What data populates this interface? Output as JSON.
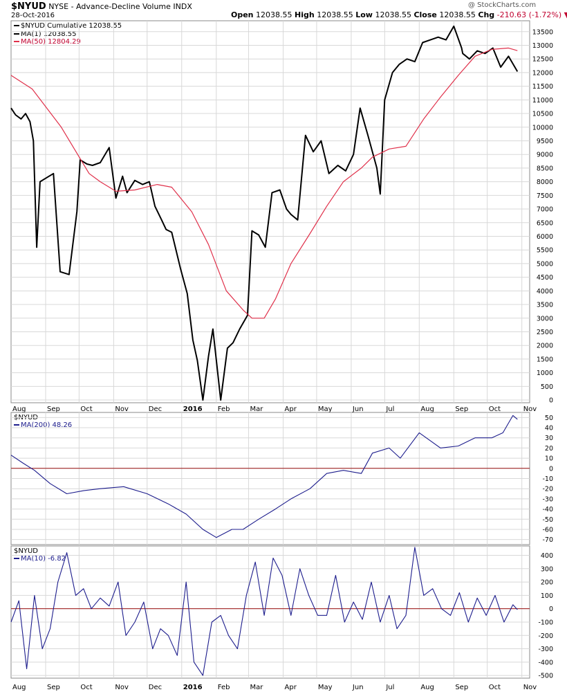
{
  "header": {
    "symbol": "$NYUD",
    "description": "NYSE - Advance-Decline Volume INDX",
    "date": "28-Oct-2016",
    "open_label": "Open",
    "open": "12038.55",
    "high_label": "High",
    "high": "12038.55",
    "low_label": "Low",
    "low": "12038.55",
    "close_label": "Close",
    "close": "12038.55",
    "chg_label": "Chg",
    "chg": "-210.63 (-1.72%)",
    "chg_color": "#c0002e",
    "watermark": "@ StockCharts.com"
  },
  "colors": {
    "price": "#000000",
    "ma50": "#e0304a",
    "osc": "#1c1c8c",
    "zero": "#9a1010",
    "grid": "#d8d8d8"
  },
  "legends": {
    "main": [
      "$NYUD Cumulative 12038.55",
      "MA(1) 12038.55",
      "MA(50) 12804.29"
    ],
    "panel2": [
      "$NYUD",
      "MA(200) 48.26"
    ],
    "panel3": [
      "$NYUD",
      "MA(10) -6.82"
    ]
  },
  "chart_data": [
    {
      "type": "line",
      "series": [
        {
          "name": "MA(1)",
          "x": [
            "2015-08-01",
            "2015-08-05",
            "2015-08-10",
            "2015-08-14",
            "2015-08-18",
            "2015-08-21",
            "2015-08-24",
            "2015-08-27",
            "2015-09-02",
            "2015-09-08",
            "2015-09-14",
            "2015-09-22",
            "2015-09-29",
            "2015-10-02",
            "2015-10-08",
            "2015-10-13",
            "2015-10-20",
            "2015-10-28",
            "2015-11-03",
            "2015-11-09",
            "2015-11-13",
            "2015-11-20",
            "2015-11-27",
            "2015-12-03",
            "2015-12-08",
            "2015-12-14",
            "2015-12-18",
            "2015-12-23",
            "2015-12-31",
            "2016-01-06",
            "2016-01-11",
            "2016-01-15",
            "2016-01-20",
            "2016-01-25",
            "2016-01-29",
            "2016-02-05",
            "2016-02-11",
            "2016-02-16",
            "2016-02-22",
            "2016-02-29",
            "2016-03-04",
            "2016-03-10",
            "2016-03-16",
            "2016-03-22",
            "2016-03-29",
            "2016-04-04",
            "2016-04-08",
            "2016-04-14",
            "2016-04-21",
            "2016-04-28",
            "2016-05-05",
            "2016-05-12",
            "2016-05-20",
            "2016-05-27",
            "2016-06-03",
            "2016-06-09",
            "2016-06-16",
            "2016-06-24",
            "2016-06-27",
            "2016-07-01",
            "2016-07-08",
            "2016-07-14",
            "2016-07-21",
            "2016-07-28",
            "2016-08-04",
            "2016-08-11",
            "2016-08-18",
            "2016-08-25",
            "2016-09-01",
            "2016-09-08",
            "2016-09-09",
            "2016-09-15",
            "2016-09-22",
            "2016-09-29",
            "2016-10-06",
            "2016-10-13",
            "2016-10-20",
            "2016-10-28"
          ],
          "y": [
            10700,
            10450,
            10300,
            10500,
            10200,
            9500,
            5600,
            8000,
            8150,
            8300,
            4700,
            4600,
            6900,
            8800,
            8650,
            8600,
            8700,
            9250,
            7400,
            8200,
            7600,
            8050,
            7900,
            8000,
            7100,
            6600,
            6250,
            6150,
            4800,
            3900,
            2200,
            1450,
            0,
            1600,
            2600,
            0,
            1900,
            2100,
            2600,
            3100,
            6200,
            6050,
            5600,
            7600,
            7700,
            7000,
            6800,
            6600,
            9700,
            9100,
            9500,
            8300,
            8600,
            8400,
            9000,
            10700,
            9700,
            8500,
            7550,
            11000,
            12000,
            12300,
            12500,
            12400,
            13100,
            13200,
            13300,
            13200,
            13700,
            12900,
            12700,
            12500,
            12800,
            12700,
            12900,
            12200,
            12600,
            12038.55
          ]
        },
        {
          "name": "MA(50)",
          "x": [
            "2015-08-01",
            "2015-08-20",
            "2015-09-15",
            "2015-10-10",
            "2015-10-20",
            "2015-11-03",
            "2015-11-20",
            "2015-12-10",
            "2015-12-23",
            "2016-01-10",
            "2016-01-25",
            "2016-02-10",
            "2016-02-25",
            "2016-03-04",
            "2016-03-15",
            "2016-03-25",
            "2016-04-08",
            "2016-04-25",
            "2016-05-10",
            "2016-05-25",
            "2016-06-10",
            "2016-06-20",
            "2016-07-05",
            "2016-07-20",
            "2016-08-05",
            "2016-08-20",
            "2016-09-05",
            "2016-09-20",
            "2016-10-05",
            "2016-10-20",
            "2016-10-28"
          ],
          "y": [
            11900,
            11400,
            10000,
            8300,
            8000,
            7650,
            7700,
            7900,
            7800,
            6900,
            5700,
            4000,
            3300,
            3000,
            3000,
            3700,
            5000,
            6100,
            7100,
            8000,
            8500,
            8900,
            9200,
            9300,
            10300,
            11100,
            11900,
            12600,
            12850,
            12900,
            12804.29
          ]
        }
      ],
      "xlabels": [
        "Aug",
        "Sep",
        "Oct",
        "Nov",
        "Dec",
        "2016",
        "Feb",
        "Mar",
        "Apr",
        "May",
        "Jun",
        "Jul",
        "Aug",
        "Sep",
        "Oct",
        "Nov"
      ],
      "yticks": [
        0,
        500,
        1000,
        1500,
        2000,
        2500,
        3000,
        3500,
        4000,
        4500,
        5000,
        5500,
        6000,
        6500,
        7000,
        7500,
        8000,
        8500,
        9000,
        9500,
        10000,
        10500,
        11000,
        11500,
        12000,
        12500,
        13000,
        13500
      ],
      "ylim": [
        -100,
        13900
      ],
      "grid": true
    },
    {
      "type": "line",
      "series": [
        {
          "name": "MA(200)",
          "x": [
            "2015-08-01",
            "2015-08-12",
            "2015-08-22",
            "2015-09-05",
            "2015-09-20",
            "2015-10-05",
            "2015-10-20",
            "2015-11-10",
            "2015-12-01",
            "2015-12-20",
            "2016-01-05",
            "2016-01-20",
            "2016-02-01",
            "2016-02-15",
            "2016-02-25",
            "2016-03-10",
            "2016-03-25",
            "2016-04-08",
            "2016-04-25",
            "2016-05-10",
            "2016-05-25",
            "2016-06-10",
            "2016-06-20",
            "2016-07-05",
            "2016-07-15",
            "2016-08-01",
            "2016-08-20",
            "2016-09-05",
            "2016-09-20",
            "2016-10-05",
            "2016-10-15",
            "2016-10-24",
            "2016-10-28"
          ],
          "y": [
            13,
            5,
            -2,
            -15,
            -25,
            -22,
            -20,
            -18,
            -25,
            -35,
            -45,
            -60,
            -68,
            -60,
            -60,
            -50,
            -40,
            -30,
            -20,
            -5,
            -2,
            -5,
            15,
            20,
            10,
            35,
            20,
            22,
            30,
            30,
            35,
            52,
            48.26
          ]
        }
      ],
      "xlabels": [
        "Aug",
        "Sep",
        "Oct",
        "Nov",
        "Dec",
        "2016",
        "Feb",
        "Mar",
        "Apr",
        "May",
        "Jun",
        "Jul",
        "Aug",
        "Sep",
        "Oct",
        "Nov"
      ],
      "yticks": [
        -70,
        -60,
        -50,
        -40,
        -30,
        -20,
        -10,
        0,
        10,
        20,
        30,
        40,
        50
      ],
      "ylim": [
        -75,
        55
      ],
      "grid": true
    },
    {
      "type": "line",
      "series": [
        {
          "name": "MA(10)",
          "x": [
            "2015-08-01",
            "2015-08-08",
            "2015-08-15",
            "2015-08-22",
            "2015-08-29",
            "2015-09-05",
            "2015-09-12",
            "2015-09-20",
            "2015-09-28",
            "2015-10-05",
            "2015-10-12",
            "2015-10-20",
            "2015-10-28",
            "2015-11-05",
            "2015-11-12",
            "2015-11-20",
            "2015-11-28",
            "2015-12-06",
            "2015-12-13",
            "2015-12-20",
            "2015-12-28",
            "2016-01-05",
            "2016-01-12",
            "2016-01-20",
            "2016-01-28",
            "2016-02-05",
            "2016-02-12",
            "2016-02-20",
            "2016-02-28",
            "2016-03-07",
            "2016-03-15",
            "2016-03-23",
            "2016-03-31",
            "2016-04-08",
            "2016-04-16",
            "2016-04-24",
            "2016-05-02",
            "2016-05-10",
            "2016-05-18",
            "2016-05-26",
            "2016-06-03",
            "2016-06-11",
            "2016-06-19",
            "2016-06-27",
            "2016-07-05",
            "2016-07-12",
            "2016-07-20",
            "2016-07-28",
            "2016-08-05",
            "2016-08-13",
            "2016-08-21",
            "2016-08-29",
            "2016-09-06",
            "2016-09-14",
            "2016-09-22",
            "2016-09-30",
            "2016-10-08",
            "2016-10-16",
            "2016-10-24",
            "2016-10-28"
          ],
          "y": [
            -100,
            60,
            -450,
            100,
            -300,
            -150,
            200,
            420,
            100,
            150,
            0,
            80,
            20,
            200,
            -200,
            -100,
            50,
            -300,
            -150,
            -200,
            -350,
            200,
            -400,
            -500,
            -100,
            -50,
            -200,
            -300,
            100,
            350,
            -50,
            380,
            250,
            -50,
            300,
            100,
            -50,
            -50,
            250,
            -100,
            50,
            -80,
            200,
            -100,
            100,
            -150,
            -50,
            460,
            100,
            150,
            0,
            -50,
            120,
            -100,
            80,
            -50,
            100,
            -100,
            30,
            -6.82
          ]
        }
      ],
      "xlabels": [
        "Aug",
        "Sep",
        "Oct",
        "Nov",
        "Dec",
        "2016",
        "Feb",
        "Mar",
        "Apr",
        "May",
        "Jun",
        "Jul",
        "Aug",
        "Sep",
        "Oct",
        "Nov"
      ],
      "yticks": [
        -500,
        -400,
        -300,
        -200,
        -100,
        0,
        100,
        200,
        300,
        400
      ],
      "ylim": [
        -520,
        470
      ],
      "grid": true
    }
  ]
}
